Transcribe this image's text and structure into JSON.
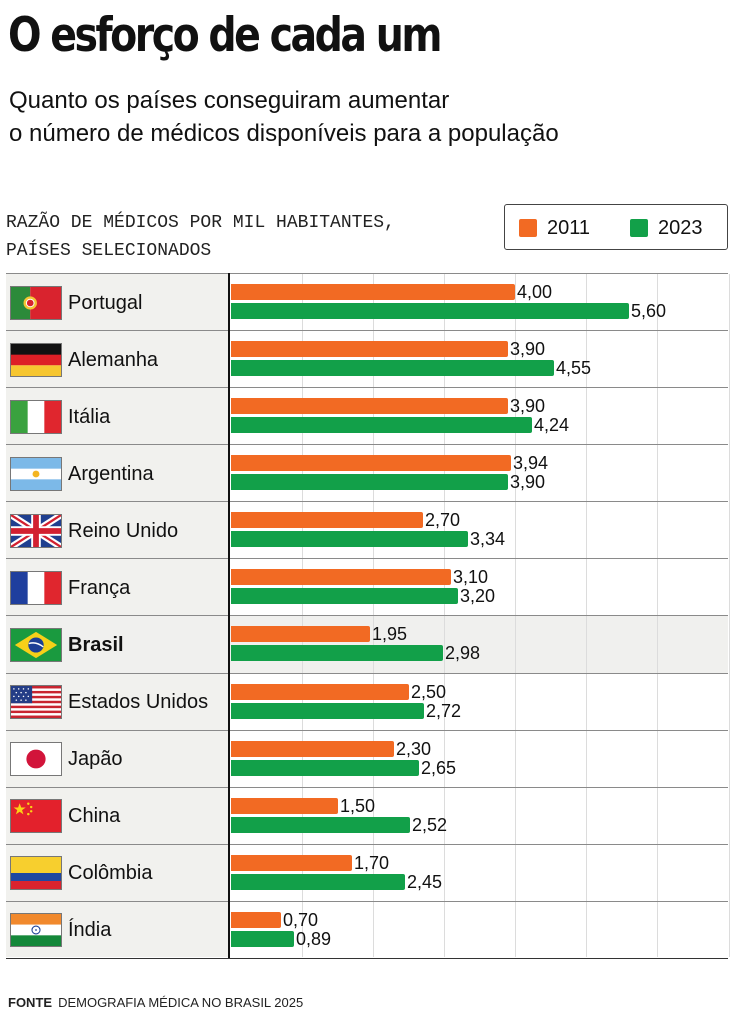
{
  "title": "O esforço de cada um",
  "subtitle": {
    "line1": "Quanto os países conseguiram aumentar",
    "line2": "o número de médicos disponíveis para a população"
  },
  "caption": {
    "line1": "RAZÃO DE MÉDICOS POR MIL HABITANTES,",
    "line2": "PAÍSES SELECIONADOS"
  },
  "legend": {
    "items": [
      {
        "label": "2011",
        "color": "#f26a23"
      },
      {
        "label": "2023",
        "color": "#12a049"
      }
    ]
  },
  "source": {
    "label": "FONTE",
    "text": "DEMOGRAFIA MÉDICA NO BRASIL 2025"
  },
  "chart_data": {
    "type": "bar",
    "orientation": "horizontal",
    "title": "O esforço de cada um",
    "subtitle": "Quanto os países conseguiram aumentar o número de médicos disponíveis para a população",
    "ylabel": "RAZÃO DE MÉDICOS POR MIL HABITANTES, PAÍSES SELECIONADOS",
    "xlim": [
      0,
      7
    ],
    "grid": true,
    "highlighted_category": "Brasil",
    "categories": [
      "Portugal",
      "Alemanha",
      "Itália",
      "Argentina",
      "Reino Unido",
      "França",
      "Brasil",
      "Estados Unidos",
      "Japão",
      "China",
      "Colômbia",
      "Índia"
    ],
    "flags": [
      "flag-portugal-icon",
      "flag-germany-icon",
      "flag-italy-icon",
      "flag-argentina-icon",
      "flag-uk-icon",
      "flag-france-icon",
      "flag-brazil-icon",
      "flag-usa-icon",
      "flag-japan-icon",
      "flag-china-icon",
      "flag-colombia-icon",
      "flag-india-icon"
    ],
    "series": [
      {
        "name": "2011",
        "color": "#f26a23",
        "values": [
          4.0,
          3.9,
          3.9,
          3.94,
          2.7,
          3.1,
          1.95,
          2.5,
          2.3,
          1.5,
          1.7,
          0.7
        ],
        "labels": [
          "4,00",
          "3,90",
          "3,90",
          "3,94",
          "2,70",
          "3,10",
          "1,95",
          "2,50",
          "2,30",
          "1,50",
          "1,70",
          "0,70"
        ]
      },
      {
        "name": "2023",
        "color": "#12a049",
        "values": [
          5.6,
          4.55,
          4.24,
          3.9,
          3.34,
          3.2,
          2.98,
          2.72,
          2.65,
          2.52,
          2.45,
          0.89
        ],
        "labels": [
          "5,60",
          "4,55",
          "4,24",
          "3,90",
          "3,34",
          "3,20",
          "2,98",
          "2,72",
          "2,65",
          "2,52",
          "2,45",
          "0,89"
        ]
      }
    ],
    "legend_position": "top-right"
  }
}
